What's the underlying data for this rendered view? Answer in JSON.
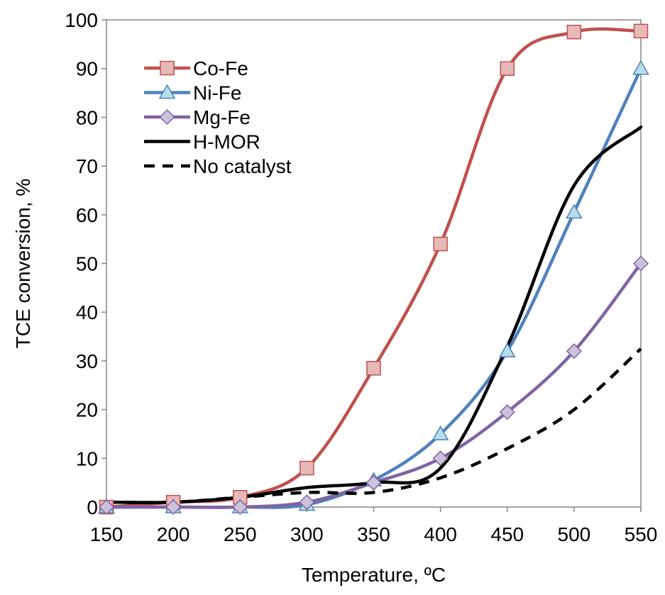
{
  "chart_data": {
    "type": "line",
    "title": "",
    "xlabel": "Temperature, ºC",
    "ylabel": "TCE conversion, %",
    "xlim": [
      150,
      550
    ],
    "ylim": [
      0,
      100
    ],
    "xticks": [
      150,
      200,
      250,
      300,
      350,
      400,
      450,
      500,
      550
    ],
    "yticks": [
      0,
      10,
      20,
      30,
      40,
      50,
      60,
      70,
      80,
      90,
      100
    ],
    "grid": false,
    "legend_position": "top-left",
    "series": [
      {
        "name": "Co-Fe",
        "color": "#C0504D",
        "marker": "square",
        "marker_fill": "#E6B9B8",
        "line_style": "solid",
        "x": [
          150,
          200,
          250,
          300,
          350,
          400,
          450,
          500,
          550
        ],
        "y": [
          0,
          1,
          2,
          8,
          28.5,
          54,
          90,
          97.5,
          97.7
        ]
      },
      {
        "name": "Ni-Fe",
        "color": "#4F81BD",
        "marker": "triangle",
        "marker_fill": "#B7DEE8",
        "line_style": "solid",
        "x": [
          150,
          200,
          250,
          300,
          350,
          400,
          450,
          500,
          550
        ],
        "y": [
          0,
          0,
          0,
          0.5,
          5.5,
          15,
          32,
          60.5,
          90
        ]
      },
      {
        "name": "Mg-Fe",
        "color": "#8064A2",
        "marker": "diamond",
        "marker_fill": "#CCC1DA",
        "line_style": "solid",
        "x": [
          150,
          200,
          250,
          300,
          350,
          400,
          450,
          500,
          550
        ],
        "y": [
          0,
          0,
          0,
          1,
          5,
          10,
          19.5,
          32,
          50
        ]
      },
      {
        "name": "H-MOR",
        "color": "#000000",
        "marker": "none",
        "marker_fill": "",
        "line_style": "solid",
        "x": [
          150,
          200,
          250,
          300,
          350,
          400,
          450,
          500,
          550
        ],
        "y": [
          1,
          1,
          2,
          4,
          5,
          8,
          33,
          66,
          78
        ]
      },
      {
        "name": "No catalyst",
        "color": "#000000",
        "marker": "none",
        "marker_fill": "",
        "line_style": "dashed",
        "x": [
          150,
          200,
          250,
          300,
          350,
          400,
          450,
          500,
          550
        ],
        "y": [
          1,
          1,
          2,
          3,
          3,
          6,
          12,
          20,
          32.5
        ]
      }
    ]
  }
}
